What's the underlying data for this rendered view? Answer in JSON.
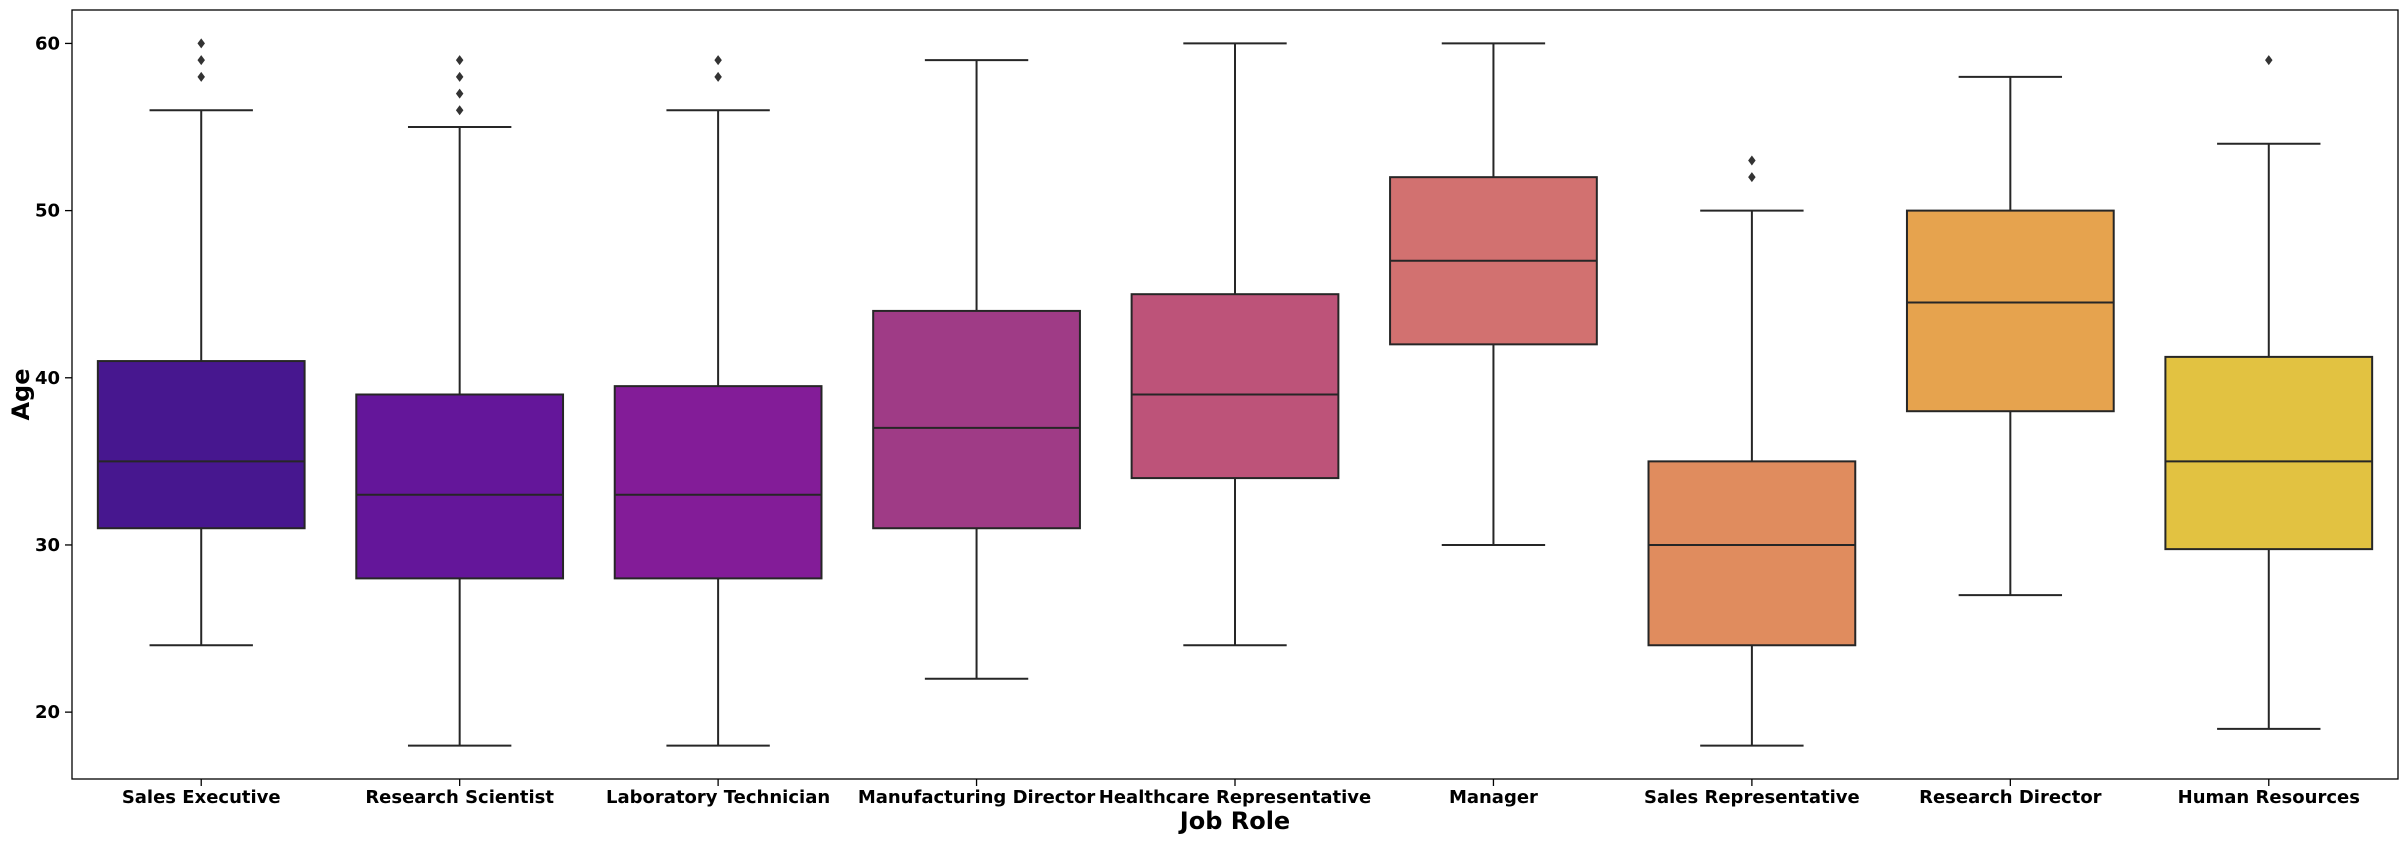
{
  "chart_data": {
    "type": "box",
    "xlabel": "Job Role",
    "ylabel": "Age",
    "ylim": [
      16,
      62
    ],
    "yticks": [
      20,
      30,
      40,
      50,
      60
    ],
    "grid": false,
    "categories": [
      "Sales Executive",
      "Research Scientist",
      "Laboratory Technician",
      "Manufacturing Director",
      "Healthcare Representative",
      "Manager",
      "Sales Representative",
      "Research Director",
      "Human Resources"
    ],
    "colors": [
      "#47178F",
      "#64169A",
      "#831C98",
      "#9F3B86",
      "#BD5379",
      "#D27170",
      "#E08C5E",
      "#E6A34E",
      "#E2C241"
    ],
    "boxes": [
      {
        "whisker_low": 24,
        "q1": 31,
        "median": 35,
        "q3": 41,
        "whisker_high": 56,
        "outliers": [
          58,
          59,
          60
        ]
      },
      {
        "whisker_low": 18,
        "q1": 28,
        "median": 33,
        "q3": 39,
        "whisker_high": 55,
        "outliers": [
          56,
          57,
          58,
          59
        ]
      },
      {
        "whisker_low": 18,
        "q1": 28,
        "median": 33,
        "q3": 39.5,
        "whisker_high": 56,
        "outliers": [
          58,
          59
        ]
      },
      {
        "whisker_low": 22,
        "q1": 31,
        "median": 37,
        "q3": 44,
        "whisker_high": 59,
        "outliers": []
      },
      {
        "whisker_low": 24,
        "q1": 34,
        "median": 39,
        "q3": 45,
        "whisker_high": 60,
        "outliers": []
      },
      {
        "whisker_low": 30,
        "q1": 42,
        "median": 47,
        "q3": 52,
        "whisker_high": 60,
        "outliers": []
      },
      {
        "whisker_low": 18,
        "q1": 24,
        "median": 30,
        "q3": 35,
        "whisker_high": 50,
        "outliers": [
          52,
          53
        ]
      },
      {
        "whisker_low": 27,
        "q1": 38,
        "median": 44.5,
        "q3": 50,
        "whisker_high": 58,
        "outliers": []
      },
      {
        "whisker_low": 19,
        "q1": 29.75,
        "median": 35,
        "q3": 41.25,
        "whisker_high": 54,
        "outliers": [
          59
        ]
      }
    ]
  }
}
